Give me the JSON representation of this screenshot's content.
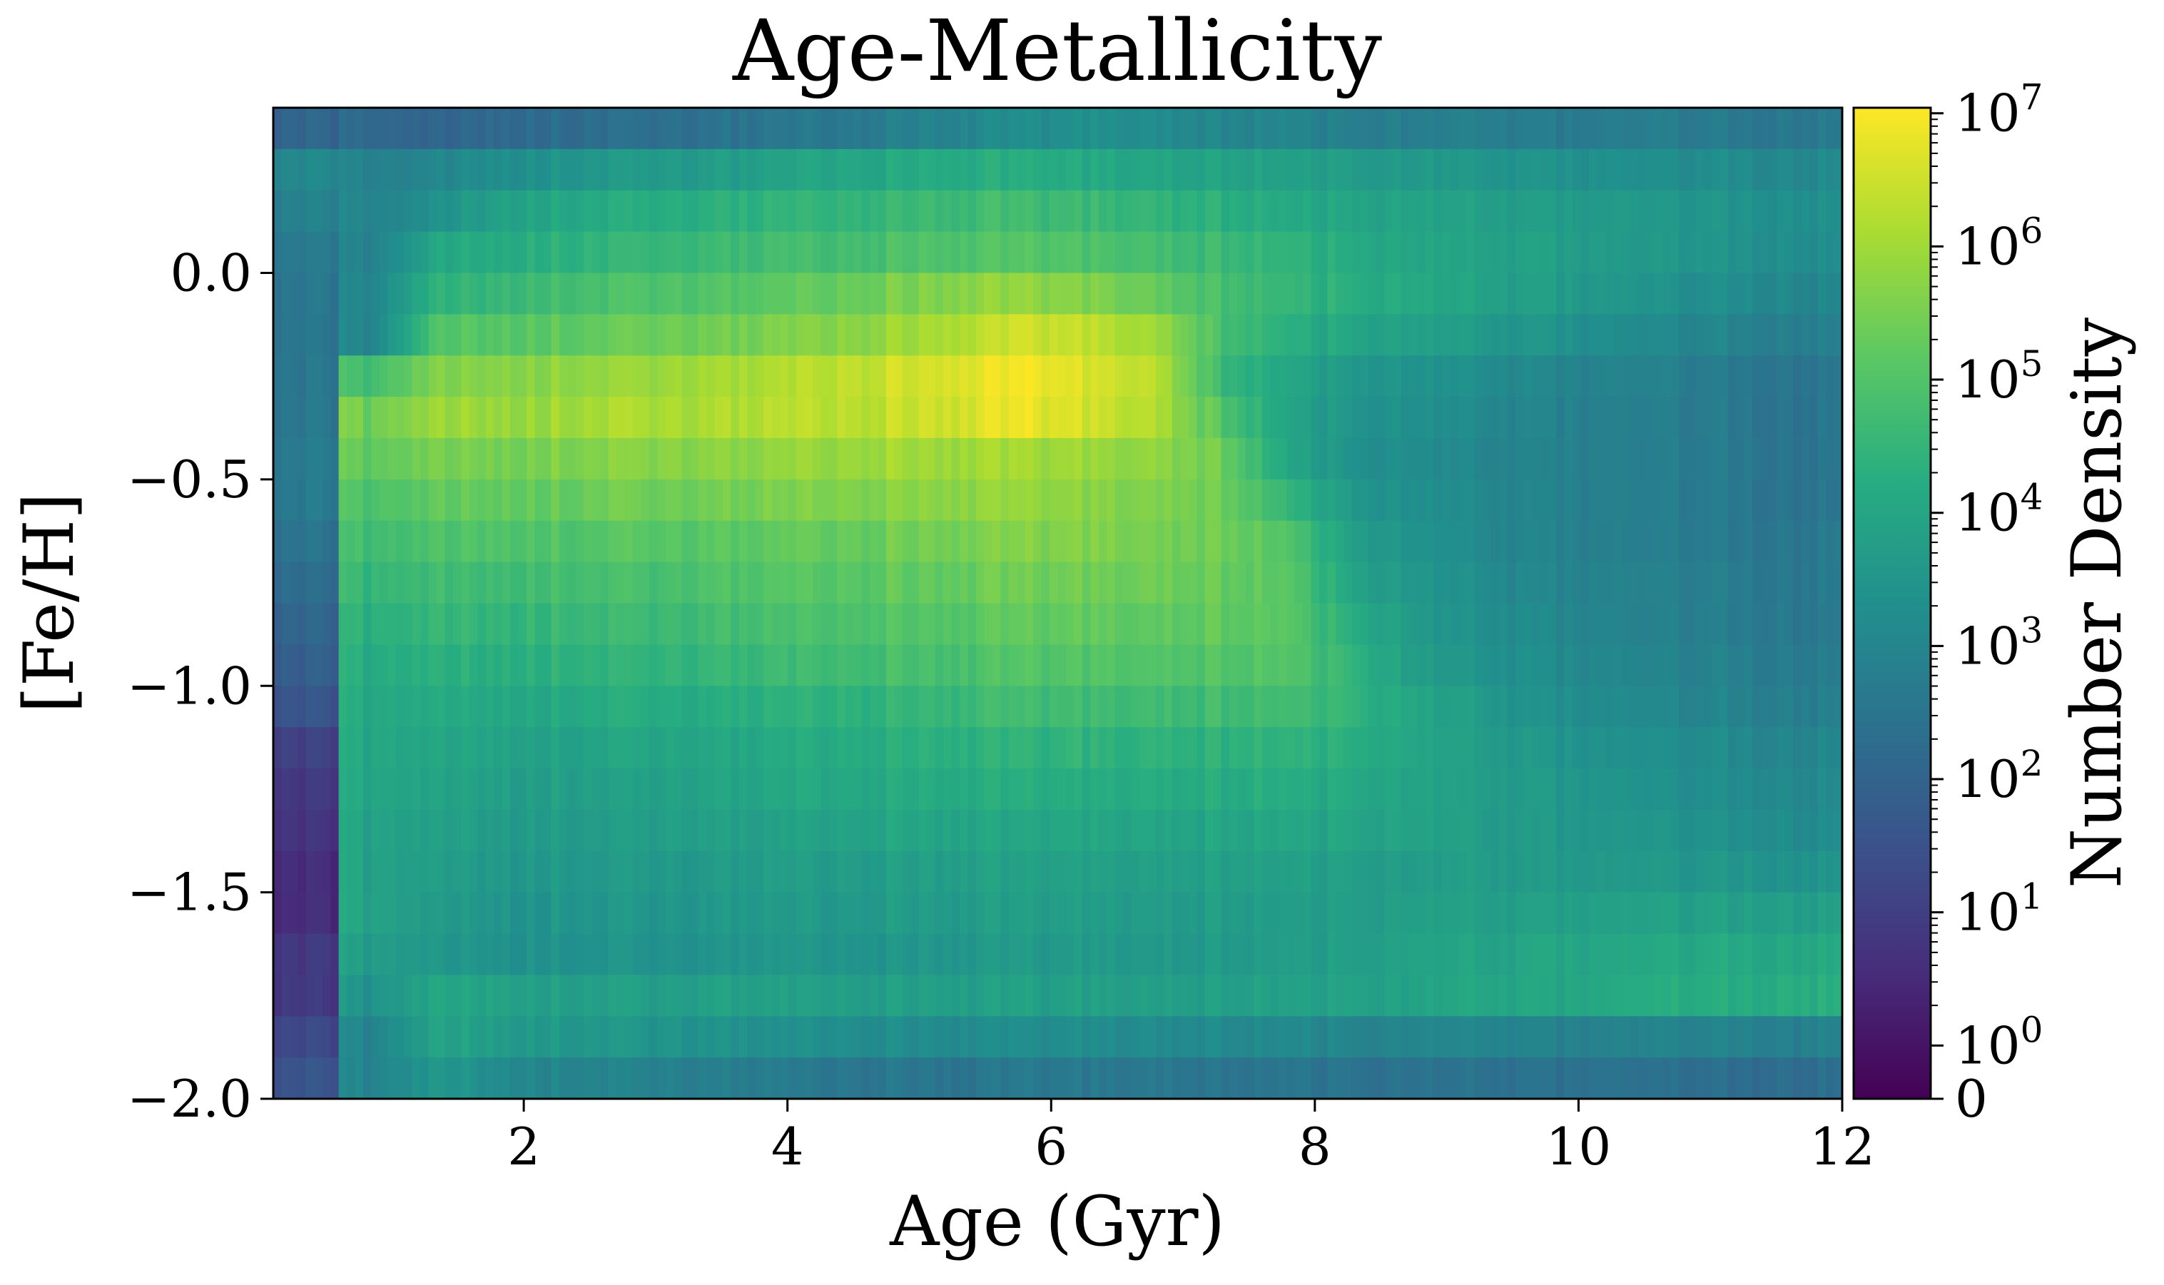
{
  "chart_data": {
    "type": "heatmap",
    "title": "Age-Metallicity",
    "xlabel": "Age (Gyr)",
    "ylabel": "[Fe/H]",
    "xlim": [
      0.1,
      12
    ],
    "ylim": [
      -2.0,
      0.4
    ],
    "xticks": [
      2,
      4,
      6,
      8,
      10,
      12
    ],
    "xtick_labels": [
      "2",
      "4",
      "6",
      "8",
      "10",
      "12"
    ],
    "yticks": [
      0.0,
      -0.5,
      -1.0,
      -1.5,
      -2.0
    ],
    "ytick_labels": [
      "0.0",
      "−0.5",
      "−1.0",
      "−1.5",
      "−2.0"
    ],
    "colormap": "viridis",
    "colorbar": {
      "label": "Number Density",
      "scale": "symlog",
      "range": [
        0,
        11000000
      ],
      "ticks": [
        {
          "value": 0,
          "base": "0",
          "exp": ""
        },
        {
          "value": 1,
          "base": "10",
          "exp": "0"
        },
        {
          "value": 10,
          "base": "10",
          "exp": "1"
        },
        {
          "value": 100,
          "base": "10",
          "exp": "2"
        },
        {
          "value": 1000,
          "base": "10",
          "exp": "3"
        },
        {
          "value": 10000,
          "base": "10",
          "exp": "4"
        },
        {
          "value": 100000,
          "base": "10",
          "exp": "5"
        },
        {
          "value": 1000000,
          "base": "10",
          "exp": "6"
        },
        {
          "value": 10000000,
          "base": "10",
          "exp": "7"
        }
      ]
    },
    "log10_density": [
      [
        2.0,
        2.2,
        2.0,
        2.2,
        2.3,
        2.3,
        2.4,
        2.5,
        2.6,
        2.8,
        3.0,
        3.2,
        3.3,
        3.2,
        3.0,
        3.0,
        2.8,
        2.8,
        2.8,
        2.7,
        2.7,
        2.7,
        2.6,
        2.6
      ],
      [
        3.0,
        2.9,
        3.0,
        3.3,
        3.5,
        3.6,
        3.7,
        3.8,
        4.0,
        4.1,
        4.2,
        4.2,
        4.1,
        4.0,
        3.9,
        3.8,
        3.7,
        3.6,
        3.5,
        3.4,
        3.3,
        3.2,
        3.2,
        3.1
      ],
      [
        2.8,
        3.0,
        3.3,
        3.9,
        4.1,
        4.2,
        4.3,
        4.4,
        4.5,
        4.6,
        4.7,
        4.7,
        4.6,
        4.5,
        4.3,
        4.1,
        4.0,
        3.9,
        3.8,
        3.7,
        3.6,
        3.5,
        3.4,
        3.3
      ],
      [
        2.6,
        2.9,
        4.0,
        4.2,
        4.4,
        4.5,
        4.6,
        4.7,
        4.8,
        4.9,
        5.0,
        5.0,
        4.9,
        4.8,
        4.6,
        4.4,
        4.2,
        4.0,
        3.9,
        3.8,
        3.6,
        3.5,
        3.4,
        3.2
      ],
      [
        2.5,
        3.0,
        4.4,
        4.6,
        4.8,
        4.9,
        5.0,
        5.1,
        5.3,
        5.5,
        5.7,
        5.8,
        5.6,
        5.3,
        4.8,
        4.5,
        4.3,
        4.1,
        3.9,
        3.7,
        3.5,
        3.3,
        3.2,
        3.0
      ],
      [
        2.5,
        3.0,
        5.0,
        5.1,
        5.2,
        5.3,
        5.4,
        5.5,
        5.7,
        5.9,
        6.2,
        6.5,
        6.3,
        6.0,
        4.8,
        4.3,
        4.0,
        3.8,
        3.6,
        3.4,
        3.2,
        3.0,
        2.9,
        2.8
      ],
      [
        2.5,
        4.8,
        5.6,
        5.7,
        5.8,
        5.9,
        6.0,
        6.1,
        6.3,
        6.5,
        6.7,
        6.9,
        6.6,
        6.3,
        4.6,
        4.0,
        3.6,
        3.4,
        3.2,
        3.0,
        2.9,
        2.8,
        2.6,
        2.5
      ],
      [
        2.5,
        5.5,
        5.9,
        5.9,
        6.0,
        6.1,
        6.1,
        6.2,
        6.3,
        6.4,
        6.6,
        6.8,
        6.5,
        6.2,
        5.0,
        3.9,
        3.5,
        3.3,
        3.1,
        2.9,
        2.8,
        2.7,
        2.6,
        2.5
      ],
      [
        2.6,
        5.3,
        5.5,
        5.5,
        5.6,
        5.7,
        5.7,
        5.8,
        5.9,
        6.0,
        6.0,
        6.0,
        5.9,
        5.8,
        5.4,
        4.0,
        3.4,
        3.2,
        3.0,
        2.9,
        2.8,
        2.7,
        2.6,
        2.5
      ],
      [
        2.6,
        5.0,
        5.2,
        5.3,
        5.3,
        5.4,
        5.4,
        5.5,
        5.6,
        5.7,
        5.8,
        5.8,
        5.7,
        5.6,
        5.4,
        4.5,
        3.6,
        3.3,
        3.1,
        2.9,
        2.8,
        2.7,
        2.6,
        2.5
      ],
      [
        2.4,
        4.8,
        4.9,
        5.0,
        5.0,
        5.1,
        5.1,
        5.2,
        5.3,
        5.4,
        5.5,
        5.6,
        5.6,
        5.5,
        5.4,
        5.0,
        3.8,
        3.4,
        3.1,
        2.9,
        2.8,
        2.7,
        2.6,
        2.6
      ],
      [
        2.2,
        4.6,
        4.7,
        4.7,
        4.8,
        4.8,
        4.9,
        5.0,
        5.1,
        5.2,
        5.3,
        5.4,
        5.4,
        5.4,
        5.3,
        5.1,
        4.0,
        3.5,
        3.2,
        3.0,
        2.9,
        2.8,
        2.7,
        2.6
      ],
      [
        2.0,
        4.4,
        4.5,
        4.5,
        4.6,
        4.6,
        4.7,
        4.8,
        4.9,
        5.0,
        5.1,
        5.2,
        5.2,
        5.2,
        5.2,
        5.1,
        4.3,
        3.6,
        3.3,
        3.1,
        2.9,
        2.8,
        2.7,
        2.6
      ],
      [
        1.8,
        4.3,
        4.3,
        4.3,
        4.4,
        4.4,
        4.5,
        4.6,
        4.7,
        4.8,
        4.9,
        5.0,
        5.0,
        5.0,
        5.0,
        5.0,
        4.5,
        3.7,
        3.4,
        3.2,
        3.0,
        2.9,
        2.8,
        2.7
      ],
      [
        1.5,
        4.2,
        4.1,
        4.1,
        4.1,
        4.2,
        4.2,
        4.3,
        4.4,
        4.5,
        4.6,
        4.7,
        4.7,
        4.7,
        4.7,
        4.7,
        4.5,
        4.0,
        3.6,
        3.3,
        3.1,
        3.0,
        2.9,
        2.8
      ],
      [
        1.0,
        4.1,
        4.0,
        3.9,
        3.9,
        4.0,
        4.0,
        4.1,
        4.2,
        4.3,
        4.4,
        4.4,
        4.4,
        4.4,
        4.4,
        4.4,
        4.3,
        4.0,
        3.7,
        3.5,
        3.3,
        3.2,
        3.1,
        3.0
      ],
      [
        0.8,
        4.1,
        3.9,
        3.8,
        3.8,
        3.8,
        3.9,
        4.0,
        4.1,
        4.1,
        4.2,
        4.2,
        4.2,
        4.2,
        4.2,
        4.2,
        4.1,
        3.9,
        3.7,
        3.6,
        3.4,
        3.3,
        3.2,
        3.1
      ],
      [
        0.7,
        4.0,
        3.8,
        3.7,
        3.7,
        3.7,
        3.8,
        3.8,
        3.9,
        4.0,
        4.0,
        4.0,
        4.0,
        4.0,
        4.0,
        4.0,
        4.0,
        3.9,
        3.7,
        3.6,
        3.5,
        3.4,
        3.3,
        3.2
      ],
      [
        0.5,
        4.0,
        3.7,
        3.6,
        3.6,
        3.6,
        3.6,
        3.7,
        3.7,
        3.8,
        3.8,
        3.8,
        3.8,
        3.8,
        3.8,
        3.8,
        3.8,
        3.7,
        3.7,
        3.6,
        3.6,
        3.5,
        3.5,
        3.4
      ],
      [
        0.5,
        4.0,
        3.6,
        3.5,
        3.5,
        3.5,
        3.5,
        3.6,
        3.6,
        3.7,
        3.7,
        3.7,
        3.7,
        3.7,
        3.7,
        3.7,
        3.8,
        3.8,
        3.8,
        3.8,
        3.8,
        3.8,
        3.8,
        3.8
      ],
      [
        0.8,
        3.8,
        3.5,
        3.4,
        3.4,
        3.4,
        3.4,
        3.5,
        3.5,
        3.5,
        3.6,
        3.6,
        3.6,
        3.6,
        3.6,
        3.7,
        3.8,
        3.9,
        3.9,
        4.0,
        4.0,
        4.1,
        4.1,
        4.1
      ],
      [
        0.8,
        3.5,
        4.0,
        3.9,
        3.8,
        3.8,
        3.8,
        3.8,
        3.8,
        3.8,
        3.8,
        3.8,
        3.8,
        3.8,
        3.8,
        3.8,
        3.9,
        3.9,
        4.0,
        4.0,
        4.1,
        4.2,
        4.2,
        4.3
      ],
      [
        1.2,
        3.0,
        3.9,
        3.7,
        3.6,
        3.5,
        3.4,
        3.3,
        3.3,
        3.2,
        3.2,
        3.2,
        3.2,
        3.2,
        3.1,
        3.1,
        3.0,
        3.0,
        3.0,
        2.9,
        2.9,
        2.9,
        2.9,
        2.9
      ],
      [
        1.5,
        3.0,
        3.5,
        3.2,
        3.0,
        2.9,
        2.8,
        2.7,
        2.6,
        2.6,
        2.5,
        2.6,
        2.6,
        2.6,
        2.5,
        2.5,
        2.5,
        2.4,
        2.4,
        2.4,
        2.4,
        2.3,
        2.3,
        2.3
      ]
    ]
  }
}
